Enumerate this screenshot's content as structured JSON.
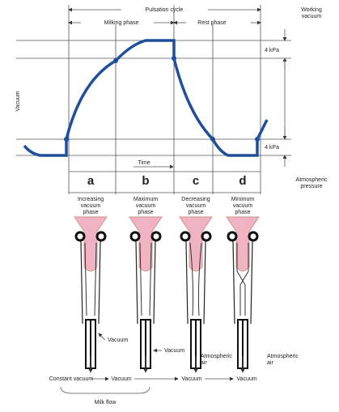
{
  "header": {
    "title": "Pulsation cycle",
    "phases": [
      "Milking phase",
      "Rest phase"
    ]
  },
  "right_labels": {
    "working_vacuum": [
      "Working",
      "vacuum"
    ],
    "kpa_top": "4 kPa",
    "kpa_bottom": "4 kPa",
    "atmospheric": [
      "Atmospheric",
      "pressure"
    ]
  },
  "axis": {
    "y": "Vacuum",
    "x": "Time"
  },
  "columns": [
    {
      "letter": "a",
      "phase": [
        "Increasing",
        "vacuum",
        "phase"
      ],
      "side_label": [
        "Vacuum"
      ],
      "bottom": "Constant vacuum"
    },
    {
      "letter": "b",
      "phase": [
        "Maximum",
        "vacuum",
        "phase"
      ],
      "side_label": [
        "Vacuum"
      ],
      "bottom": "Vacuum"
    },
    {
      "letter": "c",
      "phase": [
        "Decreasing",
        "vacuum",
        "phase"
      ],
      "side_label": [
        "Atmospheric",
        "air"
      ],
      "bottom": "Vacuum"
    },
    {
      "letter": "d",
      "phase": [
        "Minimum",
        "vacuum",
        "phase"
      ],
      "side_label": [
        "Atmospheric",
        "air"
      ],
      "bottom": "Vacuum"
    }
  ],
  "milk_flow": "Milk flow"
}
